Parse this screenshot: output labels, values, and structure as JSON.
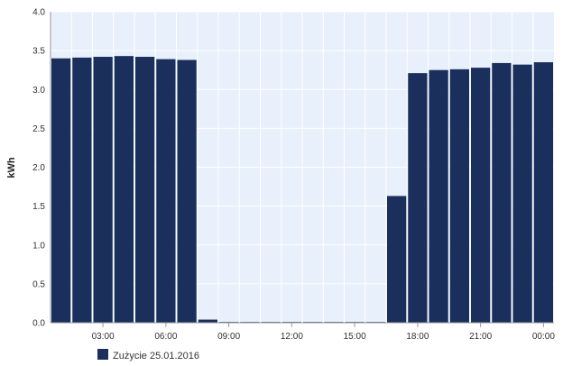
{
  "chart_data": {
    "type": "bar",
    "ylabel": "kWh",
    "ylim": [
      0,
      4.0
    ],
    "yticks": [
      "0.0",
      "0.5",
      "1.0",
      "1.5",
      "2.0",
      "2.5",
      "3.0",
      "3.5",
      "4.0"
    ],
    "x_tick_labels": [
      "03:00",
      "06:00",
      "09:00",
      "12:00",
      "15:00",
      "18:00",
      "21:00",
      "00:00"
    ],
    "x_tick_hours": [
      3,
      6,
      9,
      12,
      15,
      18,
      21,
      24
    ],
    "hours": [
      1,
      2,
      3,
      4,
      5,
      6,
      7,
      8,
      9,
      10,
      11,
      12,
      13,
      14,
      15,
      16,
      17,
      18,
      19,
      20,
      21,
      22,
      23,
      24
    ],
    "series": [
      {
        "name": "Zużycie 25.01.2016",
        "color": "#1b2f5c",
        "values": [
          3.4,
          3.41,
          3.42,
          3.43,
          3.42,
          3.39,
          3.38,
          0.04,
          0.01,
          0.01,
          0.01,
          0.01,
          0.01,
          0.01,
          0.01,
          0.01,
          1.63,
          3.21,
          3.25,
          3.26,
          3.28,
          3.34,
          3.32,
          3.35
        ]
      }
    ],
    "grid": true,
    "legend_position": "bottom-left",
    "plot_background": "#e8f0fb",
    "grid_color": "#ffffff"
  }
}
